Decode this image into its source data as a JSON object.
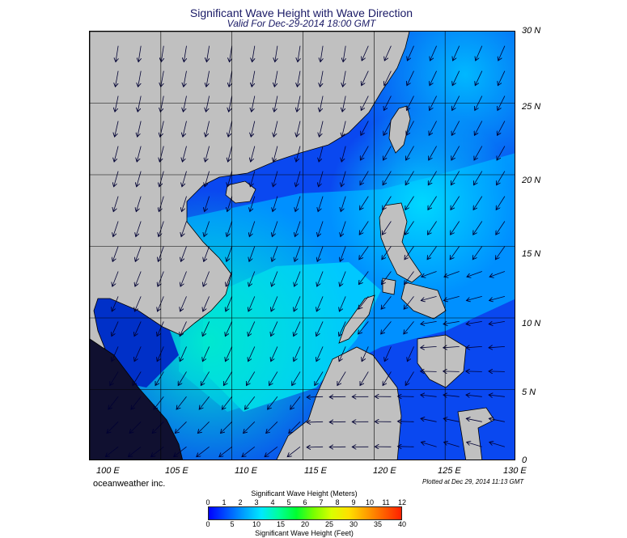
{
  "title": "Significant Wave Height with Wave Direction",
  "subtitle": "Valid For Dec-29-2014 18:00 GMT",
  "map": {
    "lon_range": [
      100,
      130
    ],
    "lat_range": [
      0,
      30
    ],
    "lat_labels": [
      "30 N",
      "25 N",
      "20 N",
      "15 N",
      "10 N",
      "5 N",
      "0"
    ],
    "lon_labels": [
      "100 E",
      "105 E",
      "110 E",
      "115 E",
      "120 E",
      "125 E",
      "130 E"
    ],
    "grid": true,
    "colors": {
      "land": "#c0c0c0",
      "coast": "#000000",
      "grid": "#000000",
      "arrows": "#000033"
    }
  },
  "credit": "oceanweather inc.",
  "plotted": "Plotted at Dec 29, 2014 11:13 GMT",
  "legend": {
    "meters_title": "Significant Wave Height (Meters)",
    "feet_title": "Significant Wave Height (Feet)",
    "meters_ticks": [
      "0",
      "1",
      "2",
      "3",
      "4",
      "5",
      "6",
      "7",
      "8",
      "9",
      "10",
      "11",
      "12"
    ],
    "feet_ticks": [
      "0",
      "5",
      "10",
      "15",
      "20",
      "25",
      "30",
      "35",
      "40"
    ],
    "colors": [
      "#0000ff",
      "#0050ff",
      "#00a0ff",
      "#00e8ff",
      "#00ff9a",
      "#00ff30",
      "#78ff00",
      "#d8ff00",
      "#ffe000",
      "#ffa000",
      "#ff6000",
      "#ff2000"
    ]
  }
}
